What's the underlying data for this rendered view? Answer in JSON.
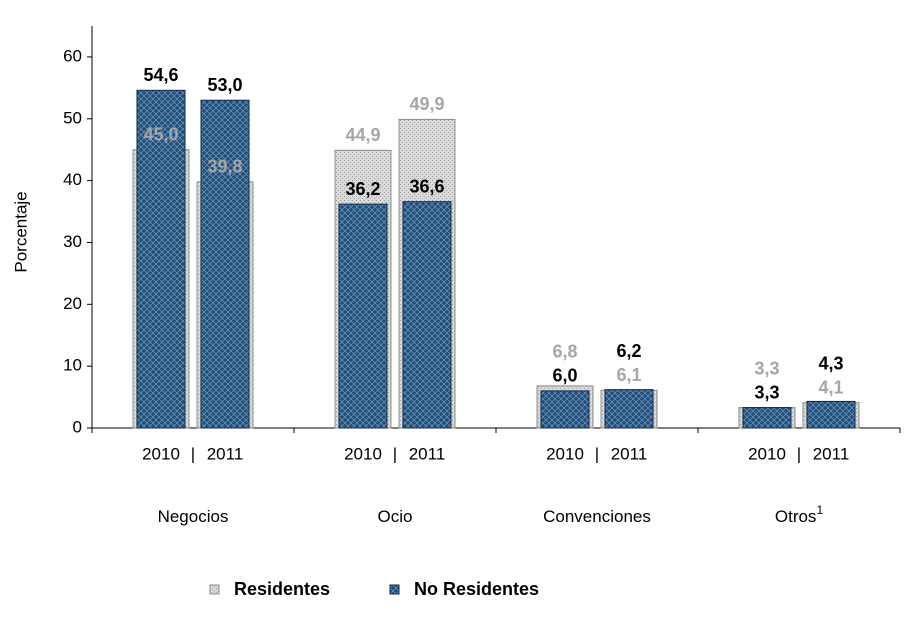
{
  "chart_data": {
    "type": "overlap_bar",
    "y_label": "Porcentaje",
    "groups": [
      "Negocios",
      "Ocio",
      "Convenciones",
      "Otros"
    ],
    "group_notes": [
      null,
      null,
      null,
      "1"
    ],
    "separator": "|",
    "categories": [
      "2010",
      "2011",
      "2010",
      "2011",
      "2010",
      "2011",
      "2010",
      "2011"
    ],
    "series": [
      {
        "name": "Residentes",
        "color": "#d9d9d9",
        "label_color": "#a6a6a6",
        "values": [
          45.0,
          39.8,
          44.9,
          49.9,
          6.8,
          6.1,
          3.3,
          4.1
        ],
        "value_labels": [
          "45,0",
          "39,8",
          "44,9",
          "49,9",
          "6,8",
          "6,1",
          "3,3",
          "4,1"
        ]
      },
      {
        "name": "No Residentes",
        "color": "#1f4e79",
        "label_color": "#000000",
        "values": [
          54.6,
          53.0,
          36.2,
          36.6,
          6.0,
          6.2,
          3.3,
          4.3
        ],
        "value_labels": [
          "54,6",
          "53,0",
          "36,2",
          "36,6",
          "6,0",
          "6,2",
          "3,3",
          "4,3"
        ]
      }
    ],
    "ylim": [
      0,
      65
    ],
    "yticks": [
      0,
      10,
      20,
      30,
      40,
      50,
      60
    ]
  }
}
